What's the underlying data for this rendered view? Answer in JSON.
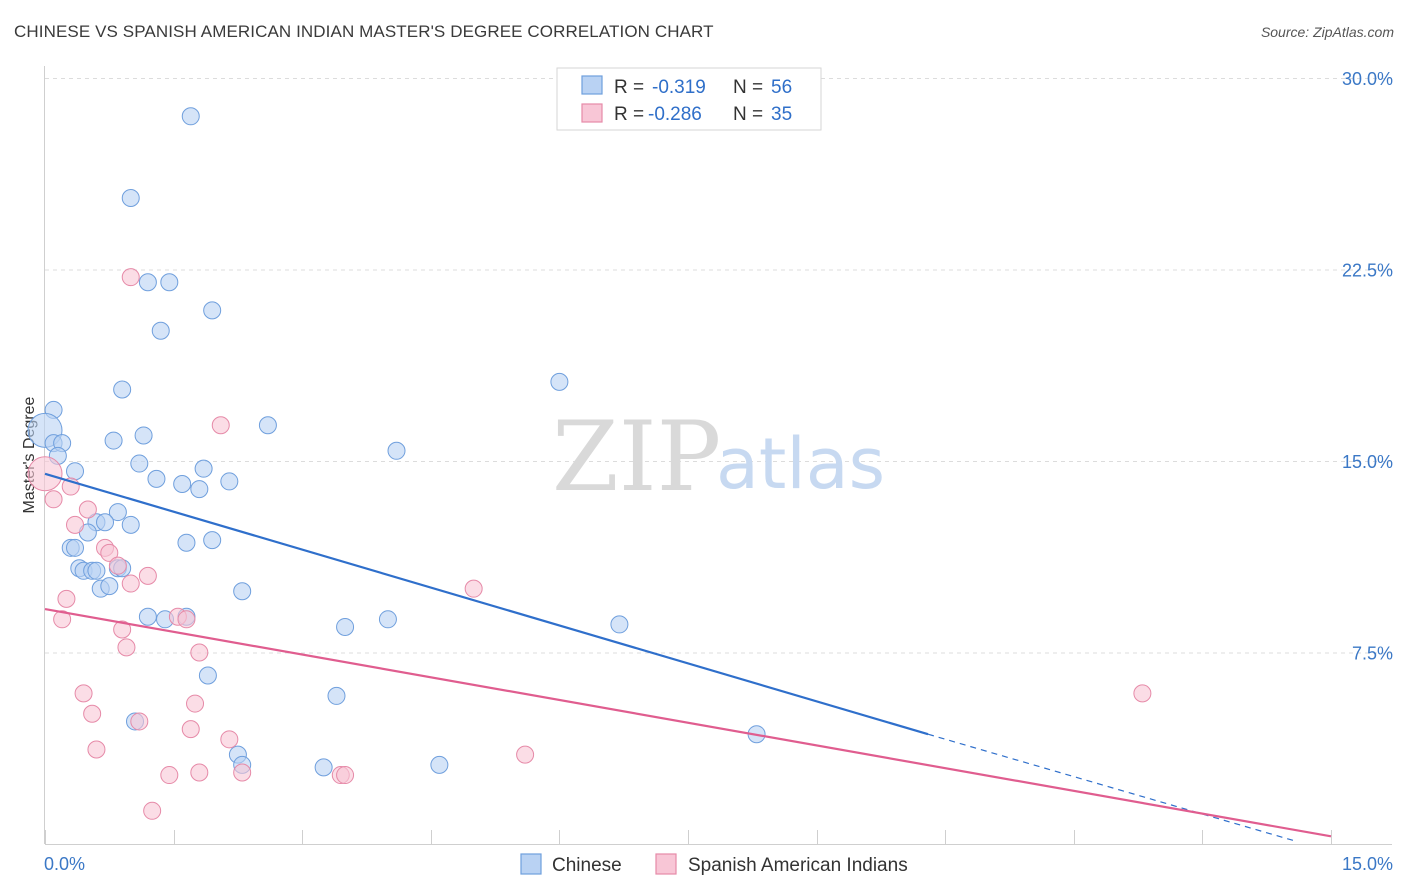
{
  "title": "CHINESE VS SPANISH AMERICAN INDIAN MASTER'S DEGREE CORRELATION CHART",
  "source": "Source: ZipAtlas.com",
  "watermark": {
    "zip": "ZIP",
    "atlas": "atlas"
  },
  "chart_data": {
    "type": "scatter",
    "xlabel": "",
    "ylabel": "Master's Degree",
    "xlim": [
      0,
      15
    ],
    "ylim": [
      0,
      30
    ],
    "x_tick_labels": [
      "0.0%",
      "15.0%"
    ],
    "y_ticks": [
      7.5,
      15.0,
      22.5,
      30.0
    ],
    "y_tick_labels": [
      "7.5%",
      "15.0%",
      "22.5%",
      "30.0%"
    ],
    "grid": true,
    "legend_position": "bottom-center",
    "stats": [
      {
        "series": "Chinese",
        "r_label": "R =",
        "r": "-0.319",
        "n_label": "N =",
        "n": "56"
      },
      {
        "series": "Spanish American Indians",
        "r_label": "R =",
        "r": "-0.286",
        "n_label": "N =",
        "n": "35"
      }
    ],
    "series": [
      {
        "name": "Chinese",
        "color": "#6f9fdd",
        "fill": "#b9d2f3",
        "trend": {
          "x0": 0.0,
          "y0": 14.5,
          "x1": 10.3,
          "y1": 4.3,
          "dash_to_x": 14.6,
          "dash_to_y": 0.1,
          "line_color": "#2f6fcb"
        },
        "points": [
          [
            1.7,
            28.5
          ],
          [
            1.0,
            25.3
          ],
          [
            1.2,
            22.0
          ],
          [
            1.45,
            22.0
          ],
          [
            1.95,
            20.9
          ],
          [
            1.35,
            20.1
          ],
          [
            0.9,
            17.8
          ],
          [
            0.1,
            17.0
          ],
          [
            0.0,
            16.2
          ],
          [
            0.1,
            15.7
          ],
          [
            0.2,
            15.7
          ],
          [
            0.15,
            15.2
          ],
          [
            0.8,
            15.8
          ],
          [
            1.15,
            16.0
          ],
          [
            2.6,
            16.4
          ],
          [
            4.1,
            15.4
          ],
          [
            6.0,
            18.1
          ],
          [
            1.1,
            14.9
          ],
          [
            1.85,
            14.7
          ],
          [
            0.35,
            14.6
          ],
          [
            1.3,
            14.3
          ],
          [
            1.6,
            14.1
          ],
          [
            1.8,
            13.9
          ],
          [
            2.15,
            14.2
          ],
          [
            0.85,
            13.0
          ],
          [
            0.6,
            12.6
          ],
          [
            0.7,
            12.6
          ],
          [
            1.0,
            12.5
          ],
          [
            0.5,
            12.2
          ],
          [
            0.3,
            11.6
          ],
          [
            0.35,
            11.6
          ],
          [
            1.65,
            11.8
          ],
          [
            1.95,
            11.9
          ],
          [
            0.4,
            10.8
          ],
          [
            0.45,
            10.7
          ],
          [
            0.55,
            10.7
          ],
          [
            0.85,
            10.8
          ],
          [
            0.65,
            10.0
          ],
          [
            0.75,
            10.1
          ],
          [
            2.3,
            9.9
          ],
          [
            1.2,
            8.9
          ],
          [
            1.4,
            8.8
          ],
          [
            1.65,
            8.9
          ],
          [
            3.5,
            8.5
          ],
          [
            4.0,
            8.8
          ],
          [
            6.7,
            8.6
          ],
          [
            1.9,
            6.6
          ],
          [
            3.4,
            5.8
          ],
          [
            1.05,
            4.8
          ],
          [
            2.25,
            3.5
          ],
          [
            2.3,
            3.1
          ],
          [
            3.25,
            3.0
          ],
          [
            4.6,
            3.1
          ],
          [
            8.3,
            4.3
          ],
          [
            0.6,
            10.7
          ],
          [
            0.9,
            10.8
          ]
        ]
      },
      {
        "name": "Spanish American Indians",
        "color": "#e68aa8",
        "fill": "#f8c6d6",
        "trend": {
          "x0": 0.0,
          "y0": 9.2,
          "x1": 15.0,
          "y1": 0.3,
          "line_color": "#e05d8f"
        },
        "points": [
          [
            0.0,
            14.5
          ],
          [
            0.1,
            13.5
          ],
          [
            0.3,
            14.0
          ],
          [
            1.0,
            22.2
          ],
          [
            2.05,
            16.4
          ],
          [
            0.5,
            13.1
          ],
          [
            0.35,
            12.5
          ],
          [
            0.7,
            11.6
          ],
          [
            0.75,
            11.4
          ],
          [
            0.85,
            10.9
          ],
          [
            1.2,
            10.5
          ],
          [
            1.0,
            10.2
          ],
          [
            0.25,
            9.6
          ],
          [
            0.2,
            8.8
          ],
          [
            0.9,
            8.4
          ],
          [
            0.95,
            7.7
          ],
          [
            1.55,
            8.9
          ],
          [
            1.65,
            8.8
          ],
          [
            1.8,
            7.5
          ],
          [
            5.0,
            10.0
          ],
          [
            0.45,
            5.9
          ],
          [
            0.55,
            5.1
          ],
          [
            1.1,
            4.8
          ],
          [
            1.75,
            5.5
          ],
          [
            1.7,
            4.5
          ],
          [
            2.15,
            4.1
          ],
          [
            0.6,
            3.7
          ],
          [
            1.45,
            2.7
          ],
          [
            1.8,
            2.8
          ],
          [
            2.3,
            2.8
          ],
          [
            3.45,
            2.7
          ],
          [
            3.5,
            2.7
          ],
          [
            5.6,
            3.5
          ],
          [
            1.25,
            1.3
          ],
          [
            12.8,
            5.9
          ]
        ]
      }
    ]
  }
}
